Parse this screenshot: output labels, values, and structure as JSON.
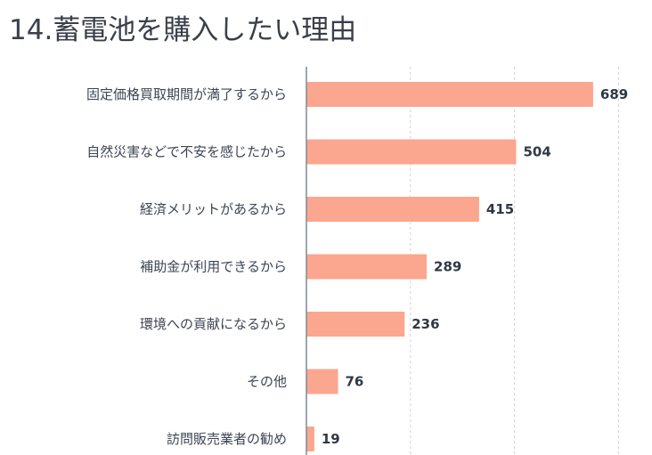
{
  "title": "14.蓄電池を購入したい理由",
  "colors": {
    "bar": "#fba68e",
    "axis": "#7f8a99",
    "grid": "#cfd3d8"
  },
  "chart_data": {
    "type": "bar",
    "orientation": "horizontal",
    "title": "14.蓄電池を購入したい理由",
    "categories": [
      "固定価格買取期間が満了するから",
      "自然災害などで不安を感じたから",
      "経済メリットがあるから",
      "補助金が利用できるから",
      "環境への貢献になるから",
      "その他",
      "訪問販売業者の勧め"
    ],
    "values": [
      689,
      504,
      415,
      289,
      236,
      76,
      19
    ],
    "xlim": [
      0,
      800
    ],
    "grid": true,
    "data_labels": true
  }
}
